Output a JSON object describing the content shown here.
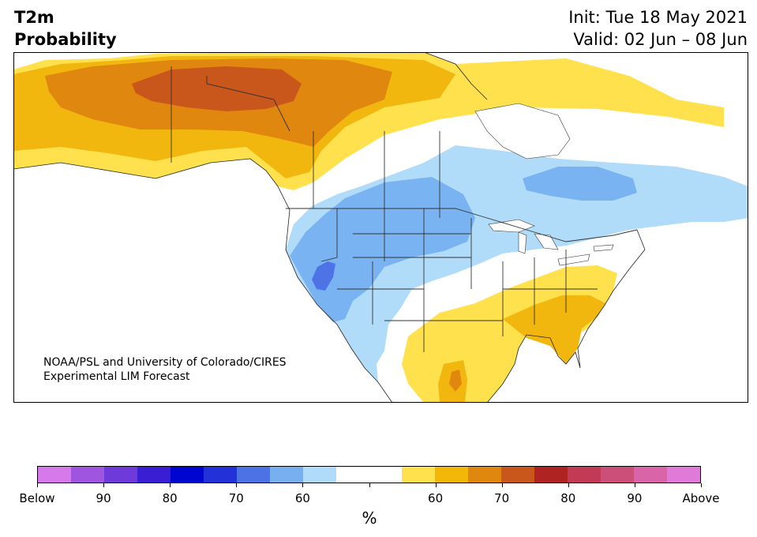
{
  "header": {
    "title_line1": "T2m",
    "title_line2": "Probability",
    "init": "Init: Tue 18 May 2021",
    "valid": "Valid: 02 Jun – 08 Jun"
  },
  "credit": {
    "line1": "NOAA/PSL and University of Colorado/CIRES",
    "line2": "Experimental LIM Forecast"
  },
  "colors": {
    "ocean": "#ffffff",
    "land": "#ffffff",
    "border": "#333333",
    "below_60": "#b0dcfa",
    "below_70": "#7ab3f2",
    "below_80": "#4e73e6",
    "above_60": "#ffe04d",
    "above_70": "#f2b70f",
    "above_80": "#e0870f",
    "above_90": "#c9561a"
  },
  "colorbar": {
    "unit": "%",
    "colors": [
      "#d679ea",
      "#9f55e0",
      "#6e3ad9",
      "#3a1ed4",
      "#0006d0",
      "#2331d9",
      "#4b73e6",
      "#77aff0",
      "#b0dcfa",
      "#ffffff",
      "#ffffff",
      "#ffe04d",
      "#f3b70a",
      "#e0870f",
      "#c9561a",
      "#b02323",
      "#c23a55",
      "#cc4f79",
      "#d965a8",
      "#e07ad8"
    ],
    "tick_labels": [
      "Below",
      "90",
      "80",
      "70",
      "60",
      "",
      "60",
      "70",
      "80",
      "90",
      "Above"
    ]
  }
}
